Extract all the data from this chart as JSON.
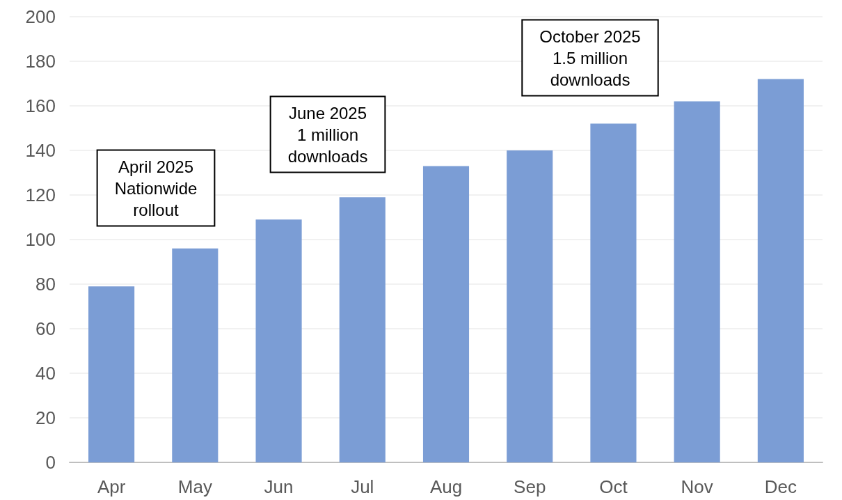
{
  "chart_data": {
    "type": "bar",
    "categories": [
      "Apr",
      "May",
      "Jun",
      "Jul",
      "Aug",
      "Sep",
      "Oct",
      "Nov",
      "Dec"
    ],
    "values": [
      79,
      96,
      109,
      119,
      133,
      140,
      152,
      162,
      172
    ],
    "color": "#7b9dd5",
    "ylim": [
      0,
      200
    ],
    "yticks": [
      0,
      20,
      40,
      60,
      80,
      100,
      120,
      140,
      160,
      180,
      200
    ],
    "grid": "y",
    "annotations": [
      "April 2025\nNationwide\nrollout",
      "June 2025\n1 million\ndownloads",
      "October 2025\n1.5 million\ndownloads"
    ]
  }
}
